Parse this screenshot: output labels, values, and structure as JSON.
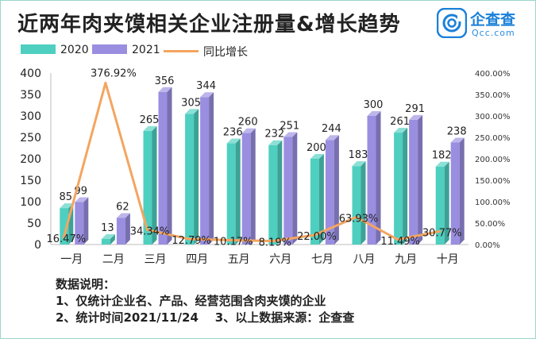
{
  "header": {
    "title": "近两年肉夹馍相关企业注册量&增长趋势",
    "brand_name": "企查查",
    "brand_sub": "Qcc.com"
  },
  "colors": {
    "s2020": "#4ecfc0",
    "s2021": "#9a8ee0",
    "growth": "#f4a560"
  },
  "chart_data": {
    "type": "bar",
    "title": "近两年肉夹馍相关企业注册量&增长趋势",
    "categories": [
      "一月",
      "二月",
      "三月",
      "四月",
      "五月",
      "六月",
      "七月",
      "八月",
      "九月",
      "十月"
    ],
    "series": [
      {
        "name": "2020",
        "type": "bar",
        "axis": "left",
        "values": [
          85,
          13,
          265,
          305,
          236,
          232,
          200,
          183,
          261,
          182
        ]
      },
      {
        "name": "2021",
        "type": "bar",
        "axis": "left",
        "values": [
          99,
          62,
          356,
          344,
          260,
          251,
          244,
          300,
          291,
          238
        ]
      },
      {
        "name": "同比增长",
        "type": "line",
        "axis": "right",
        "values": [
          16.47,
          376.92,
          34.34,
          12.79,
          10.17,
          8.19,
          22.0,
          63.93,
          11.49,
          30.77
        ]
      }
    ],
    "growth_labels": [
      "16.47%",
      "376.92%",
      "34.34%",
      "12.79%",
      "10.17%",
      "8.19%",
      "22.00%",
      "63.93%",
      "11.49%",
      "30.77%"
    ],
    "ylim_left": [
      0,
      400
    ],
    "yticks_left": [
      "0",
      "50",
      "100",
      "150",
      "200",
      "250",
      "300",
      "350",
      "400"
    ],
    "ylim_right": [
      0,
      400
    ],
    "yticks_right": [
      "0.00%",
      "50.00%",
      "100.00%",
      "150.00%",
      "200.00%",
      "250.00%",
      "300.00%",
      "350.00%",
      "400.00%"
    ],
    "legend": [
      "2020",
      "2021",
      "同比增长"
    ],
    "legend_position": "top-left",
    "grid": false
  },
  "notes": {
    "heading": "数据说明：",
    "line1": "1、仅统计企业名、产品、经营范围含肉夹馍的企业",
    "line2": "2、统计时间2021/11/24    3、以上数据来源：企查查"
  }
}
